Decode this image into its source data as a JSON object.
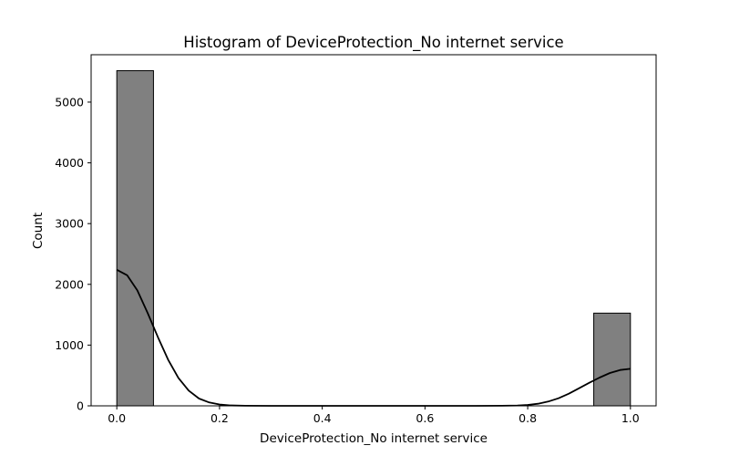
{
  "chart_data": {
    "type": "bar",
    "title": "Histogram of DeviceProtection_No internet service",
    "xlabel": "DeviceProtection_No internet service",
    "ylabel": "Count",
    "xlim": [
      -0.05,
      1.05
    ],
    "ylim": [
      0,
      5780
    ],
    "x_ticks": [
      0.0,
      0.2,
      0.4,
      0.6,
      0.8,
      1.0
    ],
    "x_tick_labels": [
      "0.0",
      "0.2",
      "0.4",
      "0.6",
      "0.8",
      "1.0"
    ],
    "y_ticks": [
      0,
      1000,
      2000,
      3000,
      4000,
      5000
    ],
    "y_tick_labels": [
      "0",
      "1000",
      "2000",
      "3000",
      "4000",
      "5000"
    ],
    "bins": [
      {
        "x0": 0.0,
        "x1": 0.0714,
        "count": 5517
      },
      {
        "x0": 0.9286,
        "x1": 1.0,
        "count": 1526
      }
    ],
    "kde": {
      "x": [
        0.0,
        0.02,
        0.04,
        0.06,
        0.08,
        0.1,
        0.12,
        0.14,
        0.16,
        0.18,
        0.2,
        0.22,
        0.25,
        0.3,
        0.4,
        0.5,
        0.6,
        0.7,
        0.75,
        0.78,
        0.8,
        0.82,
        0.84,
        0.86,
        0.88,
        0.9,
        0.92,
        0.94,
        0.96,
        0.98,
        1.0
      ],
      "y": [
        2240,
        2150,
        1900,
        1530,
        1130,
        760,
        460,
        250,
        120,
        55,
        22,
        8,
        2,
        0,
        0,
        0,
        0,
        0,
        2,
        6,
        15,
        35,
        70,
        125,
        200,
        290,
        380,
        465,
        540,
        590,
        610
      ]
    },
    "bar_color": "#808080",
    "edge_color": "#000000",
    "line_color": "#000000",
    "grid": false
  }
}
